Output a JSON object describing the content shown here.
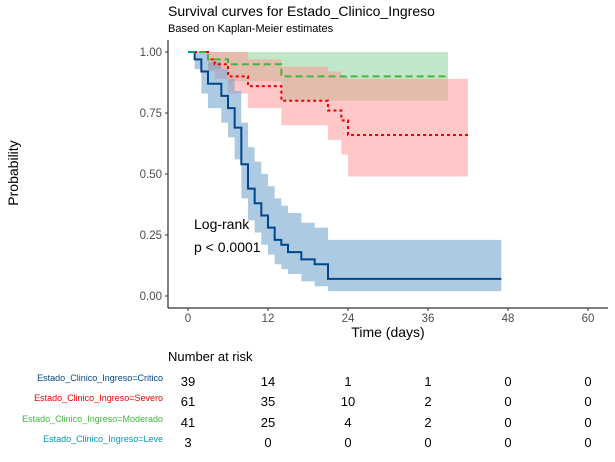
{
  "chart_data": {
    "type": "line",
    "title": "Survival curves for Estado_Clinico_Ingreso",
    "subtitle": "Based on Kaplan-Meier estimates",
    "xlabel": "Time (days)",
    "ylabel": "Probability",
    "xlim": [
      0,
      60
    ],
    "ylim": [
      0,
      1
    ],
    "x_ticks": [
      "0",
      "12",
      "24",
      "36",
      "48",
      "60"
    ],
    "y_ticks": [
      "0.00",
      "0.25",
      "0.50",
      "0.75",
      "1.00"
    ],
    "grid": false,
    "annotations": [
      "Log-rank",
      "p < 0.0001"
    ],
    "series": [
      {
        "name": "Estado_Clinico_Ingreso=Critico",
        "color": "#00468B",
        "ci_color": "#6A9FCC",
        "linestyle": "solid",
        "steps": [
          [
            0,
            1.0
          ],
          [
            1,
            0.97
          ],
          [
            2,
            0.92
          ],
          [
            3,
            0.87
          ],
          [
            5,
            0.82
          ],
          [
            6,
            0.77
          ],
          [
            7,
            0.69
          ],
          [
            8,
            0.54
          ],
          [
            9,
            0.44
          ],
          [
            10,
            0.38
          ],
          [
            11,
            0.33
          ],
          [
            12,
            0.28
          ],
          [
            13,
            0.23
          ],
          [
            14,
            0.21
          ],
          [
            15,
            0.18
          ],
          [
            17,
            0.15
          ],
          [
            19,
            0.13
          ],
          [
            21,
            0.07
          ],
          [
            47,
            0.07
          ]
        ],
        "ci_upper": [
          [
            0,
            1.0
          ],
          [
            1,
            1.0
          ],
          [
            2,
            1.0
          ],
          [
            3,
            0.96
          ],
          [
            5,
            0.93
          ],
          [
            6,
            0.89
          ],
          [
            7,
            0.84
          ],
          [
            8,
            0.71
          ],
          [
            9,
            0.61
          ],
          [
            10,
            0.55
          ],
          [
            11,
            0.5
          ],
          [
            12,
            0.45
          ],
          [
            13,
            0.4
          ],
          [
            14,
            0.37
          ],
          [
            15,
            0.34
          ],
          [
            17,
            0.3
          ],
          [
            19,
            0.28
          ],
          [
            21,
            0.23
          ],
          [
            47,
            0.23
          ]
        ],
        "ci_lower": [
          [
            0,
            1.0
          ],
          [
            1,
            0.93
          ],
          [
            2,
            0.83
          ],
          [
            3,
            0.77
          ],
          [
            5,
            0.71
          ],
          [
            6,
            0.65
          ],
          [
            7,
            0.56
          ],
          [
            8,
            0.4
          ],
          [
            9,
            0.31
          ],
          [
            10,
            0.26
          ],
          [
            11,
            0.21
          ],
          [
            12,
            0.17
          ],
          [
            13,
            0.13
          ],
          [
            14,
            0.11
          ],
          [
            15,
            0.09
          ],
          [
            17,
            0.06
          ],
          [
            19,
            0.04
          ],
          [
            21,
            0.02
          ],
          [
            47,
            0.02
          ]
        ]
      },
      {
        "name": "Estado_Clinico_Ingreso=Severo",
        "color": "#ED0000",
        "ci_color": "#FF9999",
        "linestyle": "dotted",
        "steps": [
          [
            0,
            1.0
          ],
          [
            3,
            0.97
          ],
          [
            4,
            0.95
          ],
          [
            6,
            0.9
          ],
          [
            9,
            0.86
          ],
          [
            14,
            0.8
          ],
          [
            21,
            0.76
          ],
          [
            23,
            0.72
          ],
          [
            24,
            0.66
          ],
          [
            42,
            0.66
          ]
        ],
        "ci_upper": [
          [
            0,
            1.0
          ],
          [
            3,
            1.0
          ],
          [
            4,
            1.0
          ],
          [
            6,
            1.0
          ],
          [
            9,
            0.97
          ],
          [
            14,
            0.94
          ],
          [
            21,
            0.92
          ],
          [
            23,
            0.9
          ],
          [
            24,
            0.89
          ],
          [
            42,
            0.89
          ]
        ],
        "ci_lower": [
          [
            0,
            1.0
          ],
          [
            3,
            0.92
          ],
          [
            4,
            0.89
          ],
          [
            6,
            0.83
          ],
          [
            9,
            0.77
          ],
          [
            14,
            0.7
          ],
          [
            21,
            0.64
          ],
          [
            23,
            0.58
          ],
          [
            24,
            0.49
          ],
          [
            42,
            0.49
          ]
        ]
      },
      {
        "name": "Estado_Clinico_Ingreso=Moderado",
        "color": "#42B540",
        "ci_color": "#8FD39A",
        "linestyle": "dashed",
        "steps": [
          [
            0,
            1.0
          ],
          [
            3,
            0.97
          ],
          [
            6,
            0.95
          ],
          [
            14,
            0.9
          ],
          [
            39,
            0.9
          ]
        ],
        "ci_upper": [
          [
            0,
            1.0
          ],
          [
            3,
            1.0
          ],
          [
            6,
            1.0
          ],
          [
            14,
            1.0
          ],
          [
            39,
            1.0
          ]
        ],
        "ci_lower": [
          [
            0,
            1.0
          ],
          [
            3,
            0.93
          ],
          [
            6,
            0.88
          ],
          [
            14,
            0.8
          ],
          [
            39,
            0.8
          ]
        ]
      },
      {
        "name": "Estado_Clinico_Ingreso=Leve",
        "color": "#0099B4",
        "ci_color": "#7FCCD9",
        "linestyle": "solid",
        "steps": [
          [
            0,
            1.0
          ],
          [
            1,
            1.0
          ]
        ],
        "ci_upper": [
          [
            0,
            1.0
          ],
          [
            1,
            1.0
          ]
        ],
        "ci_lower": [
          [
            0,
            1.0
          ],
          [
            1,
            1.0
          ]
        ]
      }
    ],
    "risk_table": {
      "title": "Number at risk",
      "times": [
        "0",
        "12",
        "24",
        "36",
        "48",
        "60"
      ],
      "rows": [
        {
          "label": "Estado_Clinico_Ingreso=Critico",
          "color": "#00468B",
          "values": [
            "39",
            "14",
            "1",
            "1",
            "0",
            "0"
          ]
        },
        {
          "label": "Estado_Clinico_Ingreso=Severo",
          "color": "#ED0000",
          "values": [
            "61",
            "35",
            "10",
            "2",
            "0",
            "0"
          ]
        },
        {
          "label": "Estado_Clinico_Ingreso=Moderado",
          "color": "#42B540",
          "values": [
            "41",
            "25",
            "4",
            "2",
            "0",
            "0"
          ]
        },
        {
          "label": "Estado_Clinico_Ingreso=Leve",
          "color": "#0099B4",
          "values": [
            "3",
            "0",
            "0",
            "0",
            "0",
            "0"
          ]
        }
      ]
    }
  }
}
